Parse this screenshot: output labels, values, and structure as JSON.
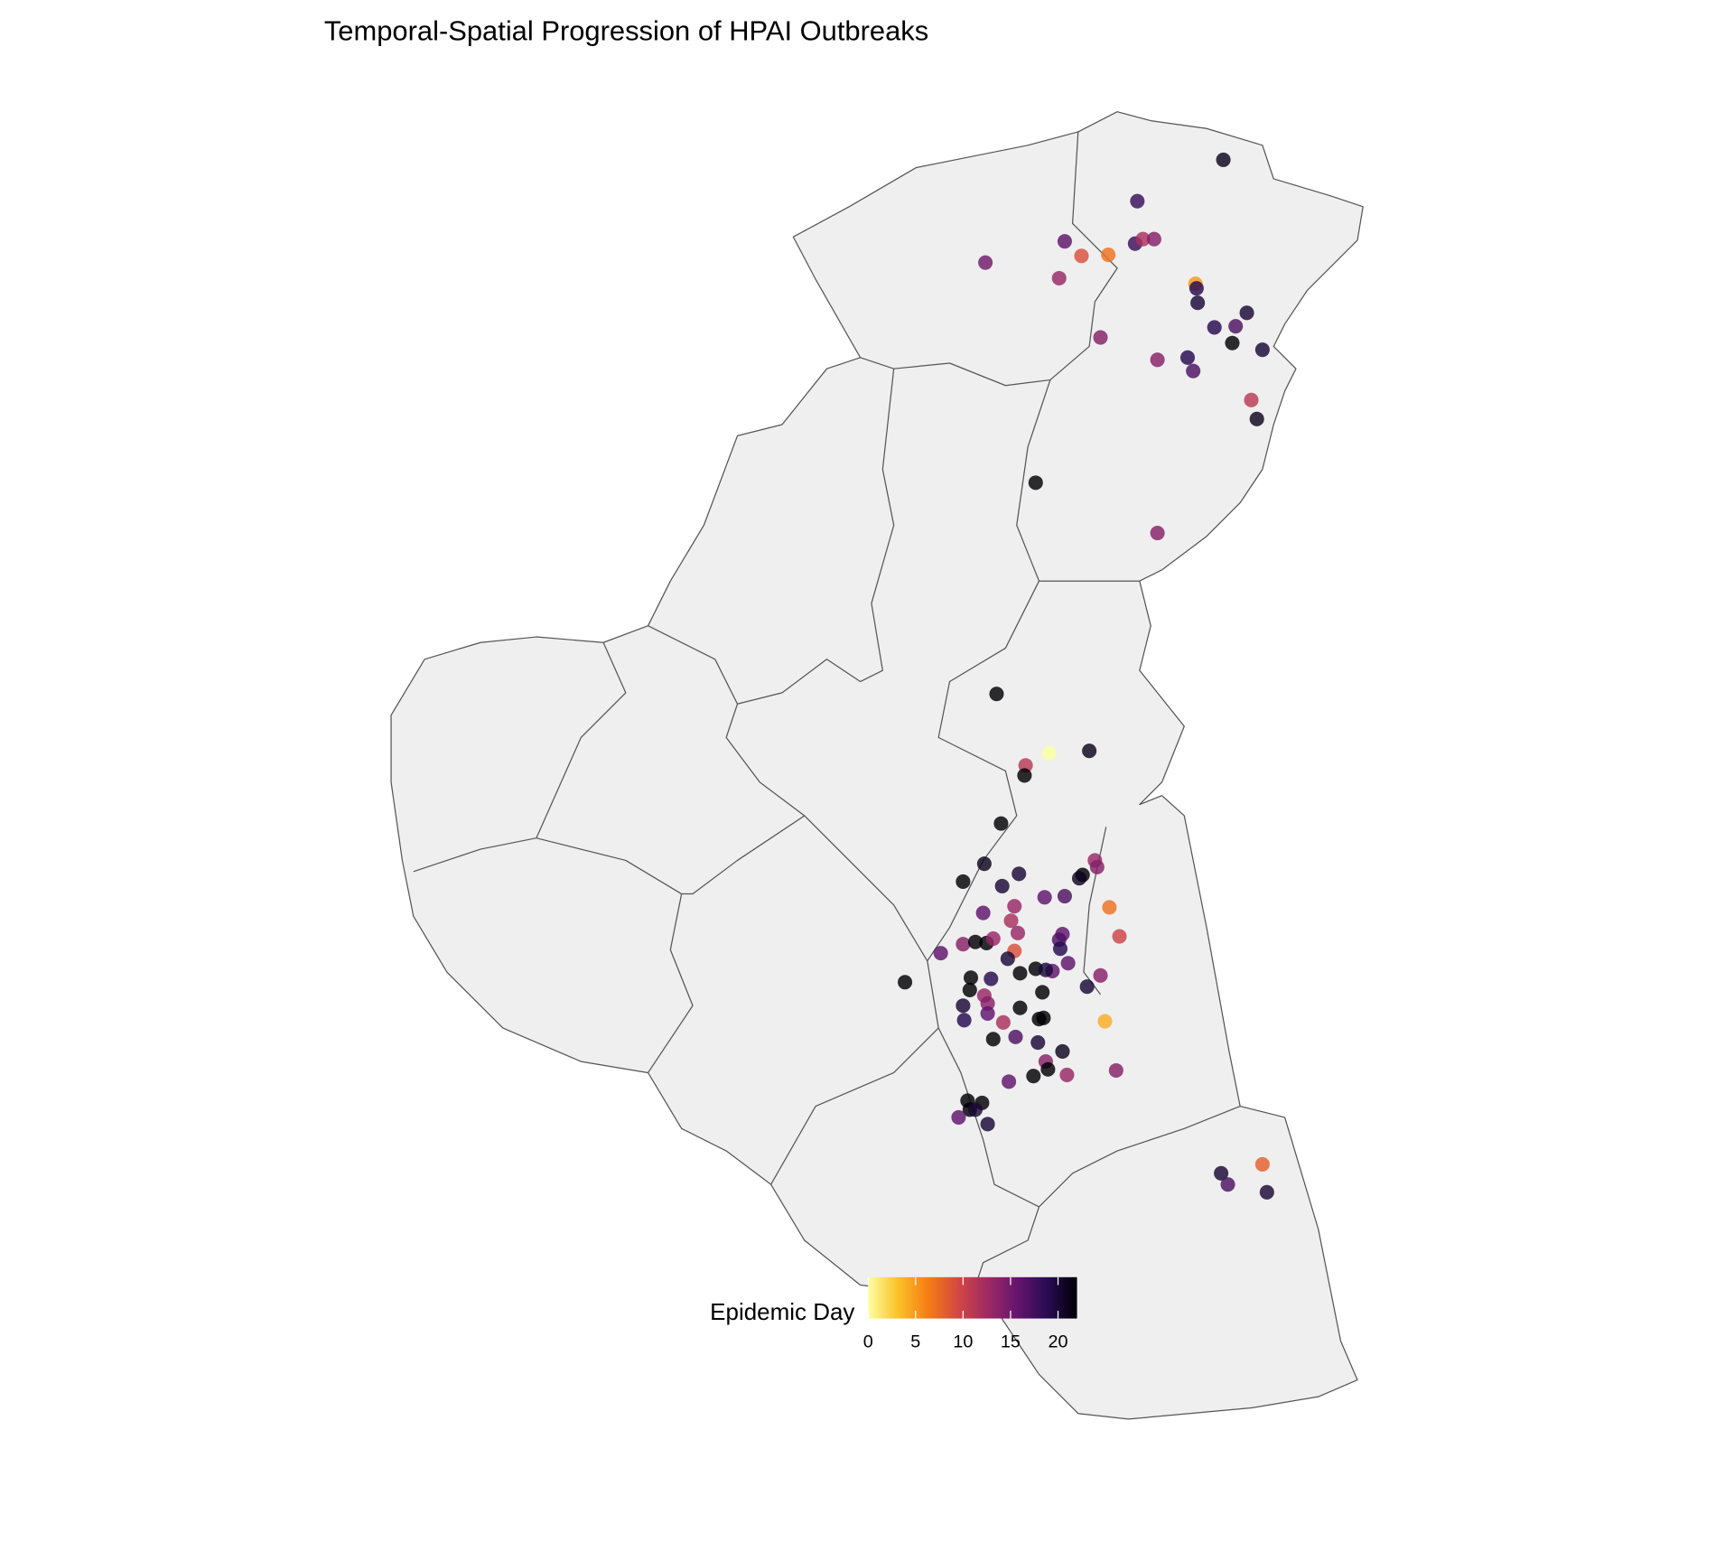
{
  "chart_data": {
    "type": "scatter",
    "title": "Temporal-Spatial Progression of HPAI Outbreaks",
    "color_label": "Epidemic Day",
    "colorscale": [
      "#fcffa4",
      "#fac228",
      "#f57d15",
      "#d44842",
      "#9f2a63",
      "#65156e",
      "#280b53",
      "#000004"
    ],
    "clim": [
      0,
      22
    ],
    "cticks": [
      0,
      5,
      10,
      15,
      20
    ],
    "values": [
      21,
      18,
      16,
      18,
      12,
      14,
      15,
      9,
      7,
      13,
      5,
      19,
      20,
      20,
      19,
      17,
      22,
      20,
      14,
      14,
      19,
      17,
      11,
      21,
      22,
      14,
      22,
      0,
      21,
      11,
      22,
      22,
      21,
      22,
      21,
      13,
      14,
      22,
      20,
      20,
      16,
      17,
      7,
      16,
      12,
      13,
      13,
      10,
      16,
      17,
      19,
      16,
      14,
      22,
      22,
      13,
      9,
      20,
      16,
      16,
      22,
      20,
      22,
      14,
      20,
      22,
      22,
      19,
      22,
      13,
      22,
      20,
      14,
      16,
      22,
      22,
      22,
      4,
      19,
      12,
      22,
      17,
      20,
      21,
      14,
      22,
      22,
      13,
      14,
      16,
      22,
      22,
      22,
      20,
      16,
      20,
      20,
      8,
      17,
      20
    ]
  }
}
